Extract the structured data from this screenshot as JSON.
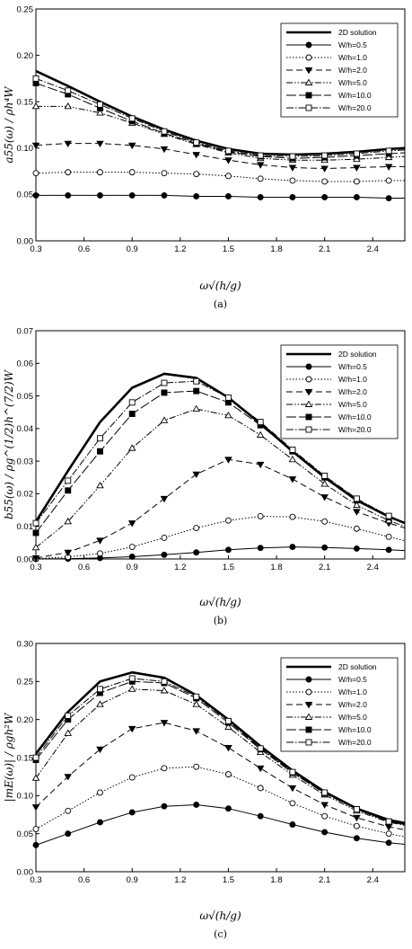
{
  "legend_entries": [
    "2D solution",
    "W/h=0.5",
    "W/h=1.0",
    "W/h=2.0",
    "W/h=5.0",
    "W/h=10.0",
    "W/h=20.0"
  ],
  "chart_data": [
    {
      "type": "line",
      "caption": "(a)",
      "ylabel": "a55(ω) / ρh⁴W",
      "xlabel": "ω√(h/g)",
      "xlim": [
        0.3,
        2.6
      ],
      "ylim": [
        0,
        0.25
      ],
      "xticks": [
        "0.3",
        "0.6",
        "0.9",
        "1.2",
        "1.5",
        "1.8",
        "2.1",
        "2.4"
      ],
      "yticks": [
        "0.00",
        "0.05",
        "0.10",
        "0.15",
        "0.20",
        "0.25"
      ],
      "legend_position": "top-right",
      "grid": false,
      "x": [
        0.3,
        0.5,
        0.7,
        0.9,
        1.1,
        1.3,
        1.5,
        1.7,
        1.9,
        2.1,
        2.3,
        2.5,
        2.6
      ],
      "series": [
        {
          "name": "2D solution",
          "values": [
            0.183,
            0.167,
            0.15,
            0.134,
            0.12,
            0.108,
            0.099,
            0.094,
            0.093,
            0.094,
            0.096,
            0.099,
            0.1
          ]
        },
        {
          "name": "W/h=0.5",
          "values": [
            0.049,
            0.049,
            0.049,
            0.049,
            0.049,
            0.048,
            0.048,
            0.047,
            0.047,
            0.047,
            0.047,
            0.046,
            0.046
          ]
        },
        {
          "name": "W/h=1.0",
          "values": [
            0.073,
            0.074,
            0.074,
            0.074,
            0.073,
            0.072,
            0.07,
            0.067,
            0.065,
            0.064,
            0.064,
            0.065,
            0.065
          ]
        },
        {
          "name": "W/h=2.0",
          "values": [
            0.103,
            0.105,
            0.105,
            0.103,
            0.099,
            0.093,
            0.087,
            0.082,
            0.079,
            0.078,
            0.079,
            0.08,
            0.08
          ]
        },
        {
          "name": "W/h=5.0",
          "values": [
            0.145,
            0.145,
            0.138,
            0.127,
            0.115,
            0.104,
            0.095,
            0.089,
            0.087,
            0.087,
            0.088,
            0.09,
            0.091
          ]
        },
        {
          "name": "W/h=10.0",
          "values": [
            0.17,
            0.158,
            0.143,
            0.129,
            0.116,
            0.105,
            0.096,
            0.091,
            0.089,
            0.09,
            0.092,
            0.094,
            0.095
          ]
        },
        {
          "name": "W/h=20.0",
          "values": [
            0.175,
            0.162,
            0.147,
            0.132,
            0.118,
            0.106,
            0.097,
            0.092,
            0.091,
            0.092,
            0.094,
            0.097,
            0.098
          ]
        }
      ]
    },
    {
      "type": "line",
      "caption": "(b)",
      "ylabel": "b55(ω) / ρg^(1/2)h^(7/2)W",
      "xlabel": "ω√(h/g)",
      "xlim": [
        0.3,
        2.6
      ],
      "ylim": [
        0,
        0.07
      ],
      "xticks": [
        "0.3",
        "0.6",
        "0.9",
        "1.2",
        "1.5",
        "1.8",
        "2.1",
        "2.4"
      ],
      "yticks": [
        "0.00",
        "0.01",
        "0.02",
        "0.03",
        "0.04",
        "0.05",
        "0.06",
        "0.07"
      ],
      "legend_position": "top-right",
      "grid": false,
      "x": [
        0.3,
        0.5,
        0.7,
        0.9,
        1.1,
        1.3,
        1.5,
        1.7,
        1.9,
        2.1,
        2.3,
        2.5,
        2.6
      ],
      "series": [
        {
          "name": "2D solution",
          "values": [
            0.0115,
            0.027,
            0.042,
            0.0525,
            0.0568,
            0.0555,
            0.0495,
            0.0415,
            0.033,
            0.025,
            0.018,
            0.013,
            0.011
          ]
        },
        {
          "name": "W/h=0.5",
          "values": [
            0.0,
            0.0001,
            0.0003,
            0.0007,
            0.0013,
            0.002,
            0.0028,
            0.0034,
            0.0037,
            0.0035,
            0.0032,
            0.0028,
            0.0026
          ]
        },
        {
          "name": "W/h=1.0",
          "values": [
            0.0001,
            0.0006,
            0.0017,
            0.0037,
            0.0065,
            0.0095,
            0.0118,
            0.0131,
            0.0129,
            0.0115,
            0.0093,
            0.0068,
            0.0056
          ]
        },
        {
          "name": "W/h=2.0",
          "values": [
            0.0003,
            0.002,
            0.0057,
            0.011,
            0.0185,
            0.026,
            0.0305,
            0.029,
            0.0245,
            0.019,
            0.0145,
            0.011,
            0.0095
          ]
        },
        {
          "name": "W/h=5.0",
          "values": [
            0.0035,
            0.0115,
            0.0225,
            0.034,
            0.0425,
            0.046,
            0.044,
            0.038,
            0.0305,
            0.023,
            0.0165,
            0.0118,
            0.01
          ]
        },
        {
          "name": "W/h=10.0",
          "values": [
            0.008,
            0.021,
            0.033,
            0.0445,
            0.051,
            0.0515,
            0.048,
            0.041,
            0.033,
            0.025,
            0.018,
            0.0128,
            0.011
          ]
        },
        {
          "name": "W/h=20.0",
          "values": [
            0.011,
            0.024,
            0.037,
            0.048,
            0.054,
            0.0545,
            0.0495,
            0.042,
            0.0335,
            0.0255,
            0.0185,
            0.0132,
            0.0112
          ]
        }
      ]
    },
    {
      "type": "line",
      "caption": "(c)",
      "ylabel": "|mE(ω)| / ρgh²W",
      "xlabel": "ω√(h/g)",
      "xlim": [
        0.3,
        2.6
      ],
      "ylim": [
        0,
        0.3
      ],
      "xticks": [
        "0.3",
        "0.6",
        "0.9",
        "1.2",
        "1.5",
        "1.8",
        "2.1",
        "2.4"
      ],
      "yticks": [
        "0.00",
        "0.05",
        "0.10",
        "0.15",
        "0.20",
        "0.25",
        "0.30"
      ],
      "legend_position": "top-right",
      "grid": false,
      "x": [
        0.3,
        0.5,
        0.7,
        0.9,
        1.1,
        1.3,
        1.5,
        1.7,
        1.9,
        2.1,
        2.3,
        2.5,
        2.6
      ],
      "series": [
        {
          "name": "2D solution",
          "values": [
            0.155,
            0.21,
            0.25,
            0.262,
            0.255,
            0.232,
            0.2,
            0.165,
            0.133,
            0.105,
            0.083,
            0.068,
            0.064
          ]
        },
        {
          "name": "W/h=0.5",
          "values": [
            0.035,
            0.05,
            0.065,
            0.078,
            0.086,
            0.088,
            0.083,
            0.073,
            0.062,
            0.052,
            0.044,
            0.038,
            0.036
          ]
        },
        {
          "name": "W/h=1.0",
          "values": [
            0.056,
            0.08,
            0.104,
            0.124,
            0.136,
            0.138,
            0.128,
            0.11,
            0.09,
            0.073,
            0.06,
            0.05,
            0.046
          ]
        },
        {
          "name": "W/h=2.0",
          "values": [
            0.085,
            0.125,
            0.161,
            0.188,
            0.196,
            0.185,
            0.163,
            0.136,
            0.11,
            0.088,
            0.071,
            0.059,
            0.055
          ]
        },
        {
          "name": "W/h=5.0",
          "values": [
            0.123,
            0.182,
            0.22,
            0.24,
            0.238,
            0.22,
            0.19,
            0.157,
            0.127,
            0.101,
            0.08,
            0.065,
            0.061
          ]
        },
        {
          "name": "W/h=10.0",
          "values": [
            0.147,
            0.2,
            0.235,
            0.25,
            0.248,
            0.228,
            0.196,
            0.161,
            0.13,
            0.103,
            0.082,
            0.066,
            0.062
          ]
        },
        {
          "name": "W/h=20.0",
          "values": [
            0.15,
            0.205,
            0.24,
            0.254,
            0.25,
            0.23,
            0.198,
            0.162,
            0.131,
            0.104,
            0.082,
            0.066,
            0.062
          ]
        }
      ]
    }
  ]
}
